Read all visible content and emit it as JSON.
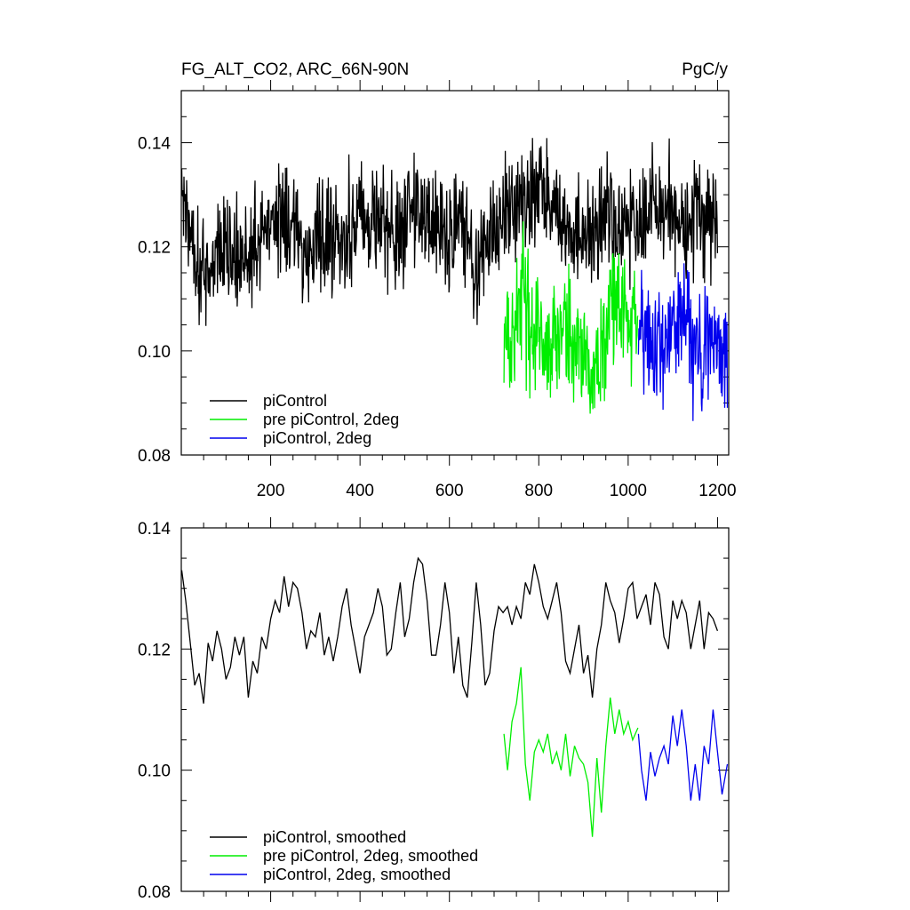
{
  "chart_data": [
    {
      "type": "line",
      "title": "FG_ALT_CO2, ARC_66N-90N",
      "units_label": "PgC/y",
      "xlim": [
        0,
        1225
      ],
      "ylim": [
        0.08,
        0.15
      ],
      "xticks": [
        200,
        400,
        600,
        800,
        1000,
        1200
      ],
      "xtick_labels": [
        "200",
        "400",
        "600",
        "800",
        "1000",
        "1200"
      ],
      "yticks": [
        0.08,
        0.1,
        0.12,
        0.14
      ],
      "ytick_labels": [
        "0.08",
        "0.10",
        "0.12",
        "0.14"
      ],
      "legend_position": "bottom-left",
      "series": [
        {
          "name": "piControl",
          "color": "#000000",
          "x_start": 1,
          "x_end": 1200,
          "points": [
            [
              1,
              0.13
            ],
            [
              25,
              0.122
            ],
            [
              50,
              0.114
            ],
            [
              75,
              0.118
            ],
            [
              100,
              0.121
            ],
            [
              125,
              0.116
            ],
            [
              150,
              0.119
            ],
            [
              175,
              0.121
            ],
            [
              200,
              0.126
            ],
            [
              225,
              0.127
            ],
            [
              250,
              0.124
            ],
            [
              275,
              0.118
            ],
            [
              300,
              0.121
            ],
            [
              325,
              0.124
            ],
            [
              350,
              0.121
            ],
            [
              375,
              0.124
            ],
            [
              400,
              0.127
            ],
            [
              425,
              0.126
            ],
            [
              450,
              0.125
            ],
            [
              475,
              0.121
            ],
            [
              500,
              0.124
            ],
            [
              525,
              0.129
            ],
            [
              550,
              0.126
            ],
            [
              575,
              0.122
            ],
            [
              600,
              0.121
            ],
            [
              625,
              0.127
            ],
            [
              650,
              0.118
            ],
            [
              675,
              0.117
            ],
            [
              700,
              0.126
            ],
            [
              725,
              0.126
            ],
            [
              750,
              0.127
            ],
            [
              775,
              0.128
            ],
            [
              800,
              0.131
            ],
            [
              825,
              0.127
            ],
            [
              850,
              0.128
            ],
            [
              875,
              0.121
            ],
            [
              900,
              0.121
            ],
            [
              925,
              0.123
            ],
            [
              950,
              0.126
            ],
            [
              975,
              0.124
            ],
            [
              1000,
              0.127
            ],
            [
              1025,
              0.124
            ],
            [
              1050,
              0.129
            ],
            [
              1075,
              0.127
            ],
            [
              1100,
              0.126
            ],
            [
              1125,
              0.127
            ],
            [
              1150,
              0.126
            ],
            [
              1175,
              0.126
            ],
            [
              1200,
              0.124
            ]
          ]
        },
        {
          "name": "pre piControl, 2deg",
          "color": "#00ee00",
          "x_start": 722,
          "x_end": 1022,
          "points": [
            [
              722,
              0.105
            ],
            [
              740,
              0.101
            ],
            [
              760,
              0.113
            ],
            [
              780,
              0.103
            ],
            [
              800,
              0.104
            ],
            [
              820,
              0.101
            ],
            [
              840,
              0.103
            ],
            [
              860,
              0.104
            ],
            [
              880,
              0.102
            ],
            [
              900,
              0.101
            ],
            [
              920,
              0.096
            ],
            [
              940,
              0.1
            ],
            [
              960,
              0.106
            ],
            [
              980,
              0.108
            ],
            [
              1000,
              0.106
            ],
            [
              1022,
              0.106
            ]
          ]
        },
        {
          "name": "piControl, 2deg",
          "color": "#0000ee",
          "x_start": 1023,
          "x_end": 1222,
          "points": [
            [
              1023,
              0.104
            ],
            [
              1050,
              0.1
            ],
            [
              1075,
              0.103
            ],
            [
              1100,
              0.103
            ],
            [
              1125,
              0.108
            ],
            [
              1150,
              0.101
            ],
            [
              1175,
              0.101
            ],
            [
              1200,
              0.103
            ],
            [
              1222,
              0.1
            ]
          ]
        }
      ]
    },
    {
      "type": "line",
      "title": "",
      "xlim": [
        0,
        1225
      ],
      "ylim": [
        0.08,
        0.14
      ],
      "xticks": [
        200,
        400,
        600,
        800,
        1000,
        1200
      ],
      "yticks": [
        0.08,
        0.1,
        0.12,
        0.14
      ],
      "ytick_labels": [
        "0.08",
        "0.10",
        "0.12",
        "0.14"
      ],
      "legend_position": "bottom-left",
      "series": [
        {
          "name": "piControl, smoothed",
          "color": "#000000",
          "points": [
            [
              1,
              0.133
            ],
            [
              10,
              0.128
            ],
            [
              20,
              0.121
            ],
            [
              30,
              0.114
            ],
            [
              40,
              0.116
            ],
            [
              50,
              0.111
            ],
            [
              60,
              0.121
            ],
            [
              70,
              0.118
            ],
            [
              80,
              0.123
            ],
            [
              90,
              0.12
            ],
            [
              100,
              0.115
            ],
            [
              110,
              0.117
            ],
            [
              120,
              0.122
            ],
            [
              130,
              0.119
            ],
            [
              140,
              0.122
            ],
            [
              150,
              0.112
            ],
            [
              160,
              0.118
            ],
            [
              170,
              0.116
            ],
            [
              180,
              0.122
            ],
            [
              190,
              0.12
            ],
            [
              200,
              0.125
            ],
            [
              210,
              0.128
            ],
            [
              220,
              0.126
            ],
            [
              230,
              0.132
            ],
            [
              240,
              0.127
            ],
            [
              250,
              0.131
            ],
            [
              260,
              0.13
            ],
            [
              270,
              0.126
            ],
            [
              280,
              0.12
            ],
            [
              290,
              0.123
            ],
            [
              300,
              0.122
            ],
            [
              310,
              0.126
            ],
            [
              320,
              0.119
            ],
            [
              330,
              0.122
            ],
            [
              340,
              0.118
            ],
            [
              350,
              0.122
            ],
            [
              360,
              0.127
            ],
            [
              370,
              0.13
            ],
            [
              380,
              0.124
            ],
            [
              390,
              0.12
            ],
            [
              400,
              0.116
            ],
            [
              410,
              0.122
            ],
            [
              420,
              0.124
            ],
            [
              430,
              0.126
            ],
            [
              440,
              0.13
            ],
            [
              450,
              0.127
            ],
            [
              460,
              0.119
            ],
            [
              470,
              0.12
            ],
            [
              480,
              0.126
            ],
            [
              490,
              0.131
            ],
            [
              500,
              0.122
            ],
            [
              510,
              0.125
            ],
            [
              520,
              0.131
            ],
            [
              530,
              0.135
            ],
            [
              540,
              0.134
            ],
            [
              550,
              0.128
            ],
            [
              560,
              0.119
            ],
            [
              570,
              0.119
            ],
            [
              580,
              0.124
            ],
            [
              590,
              0.131
            ],
            [
              600,
              0.126
            ],
            [
              610,
              0.116
            ],
            [
              620,
              0.122
            ],
            [
              630,
              0.114
            ],
            [
              640,
              0.112
            ],
            [
              650,
              0.121
            ],
            [
              660,
              0.131
            ],
            [
              670,
              0.124
            ],
            [
              680,
              0.114
            ],
            [
              690,
              0.116
            ],
            [
              700,
              0.123
            ],
            [
              710,
              0.127
            ],
            [
              720,
              0.126
            ],
            [
              730,
              0.127
            ],
            [
              740,
              0.124
            ],
            [
              750,
              0.127
            ],
            [
              760,
              0.125
            ],
            [
              770,
              0.131
            ],
            [
              780,
              0.129
            ],
            [
              790,
              0.134
            ],
            [
              800,
              0.131
            ],
            [
              810,
              0.127
            ],
            [
              820,
              0.125
            ],
            [
              830,
              0.128
            ],
            [
              840,
              0.131
            ],
            [
              850,
              0.126
            ],
            [
              860,
              0.118
            ],
            [
              870,
              0.116
            ],
            [
              880,
              0.12
            ],
            [
              890,
              0.124
            ],
            [
              900,
              0.116
            ],
            [
              910,
              0.119
            ],
            [
              920,
              0.112
            ],
            [
              930,
              0.12
            ],
            [
              940,
              0.124
            ],
            [
              950,
              0.131
            ],
            [
              960,
              0.128
            ],
            [
              970,
              0.126
            ],
            [
              980,
              0.121
            ],
            [
              990,
              0.125
            ],
            [
              1000,
              0.13
            ],
            [
              1010,
              0.131
            ],
            [
              1020,
              0.125
            ],
            [
              1030,
              0.127
            ],
            [
              1040,
              0.129
            ],
            [
              1050,
              0.124
            ],
            [
              1060,
              0.131
            ],
            [
              1070,
              0.129
            ],
            [
              1080,
              0.122
            ],
            [
              1090,
              0.12
            ],
            [
              1100,
              0.128
            ],
            [
              1110,
              0.125
            ],
            [
              1120,
              0.128
            ],
            [
              1130,
              0.126
            ],
            [
              1140,
              0.12
            ],
            [
              1150,
              0.124
            ],
            [
              1160,
              0.128
            ],
            [
              1170,
              0.12
            ],
            [
              1180,
              0.126
            ],
            [
              1190,
              0.125
            ],
            [
              1200,
              0.123
            ]
          ]
        },
        {
          "name": "pre piControl, 2deg, smoothed",
          "color": "#00ee00",
          "points": [
            [
              722,
              0.106
            ],
            [
              730,
              0.1
            ],
            [
              740,
              0.108
            ],
            [
              750,
              0.111
            ],
            [
              760,
              0.117
            ],
            [
              770,
              0.101
            ],
            [
              780,
              0.095
            ],
            [
              790,
              0.103
            ],
            [
              800,
              0.105
            ],
            [
              810,
              0.103
            ],
            [
              820,
              0.106
            ],
            [
              830,
              0.101
            ],
            [
              840,
              0.103
            ],
            [
              850,
              0.1
            ],
            [
              860,
              0.106
            ],
            [
              870,
              0.099
            ],
            [
              880,
              0.104
            ],
            [
              890,
              0.102
            ],
            [
              900,
              0.101
            ],
            [
              910,
              0.098
            ],
            [
              920,
              0.089
            ],
            [
              930,
              0.102
            ],
            [
              940,
              0.093
            ],
            [
              950,
              0.104
            ],
            [
              960,
              0.112
            ],
            [
              970,
              0.106
            ],
            [
              980,
              0.11
            ],
            [
              990,
              0.106
            ],
            [
              1000,
              0.108
            ],
            [
              1010,
              0.105
            ],
            [
              1022,
              0.107
            ]
          ]
        },
        {
          "name": "piControl, 2deg, smoothed",
          "color": "#0000ee",
          "points": [
            [
              1023,
              0.106
            ],
            [
              1030,
              0.1
            ],
            [
              1040,
              0.095
            ],
            [
              1050,
              0.103
            ],
            [
              1060,
              0.099
            ],
            [
              1070,
              0.102
            ],
            [
              1080,
              0.104
            ],
            [
              1090,
              0.101
            ],
            [
              1100,
              0.109
            ],
            [
              1110,
              0.104
            ],
            [
              1120,
              0.11
            ],
            [
              1130,
              0.104
            ],
            [
              1140,
              0.095
            ],
            [
              1150,
              0.101
            ],
            [
              1160,
              0.095
            ],
            [
              1170,
              0.104
            ],
            [
              1180,
              0.101
            ],
            [
              1190,
              0.11
            ],
            [
              1200,
              0.103
            ],
            [
              1210,
              0.096
            ],
            [
              1222,
              0.101
            ]
          ]
        }
      ]
    }
  ]
}
